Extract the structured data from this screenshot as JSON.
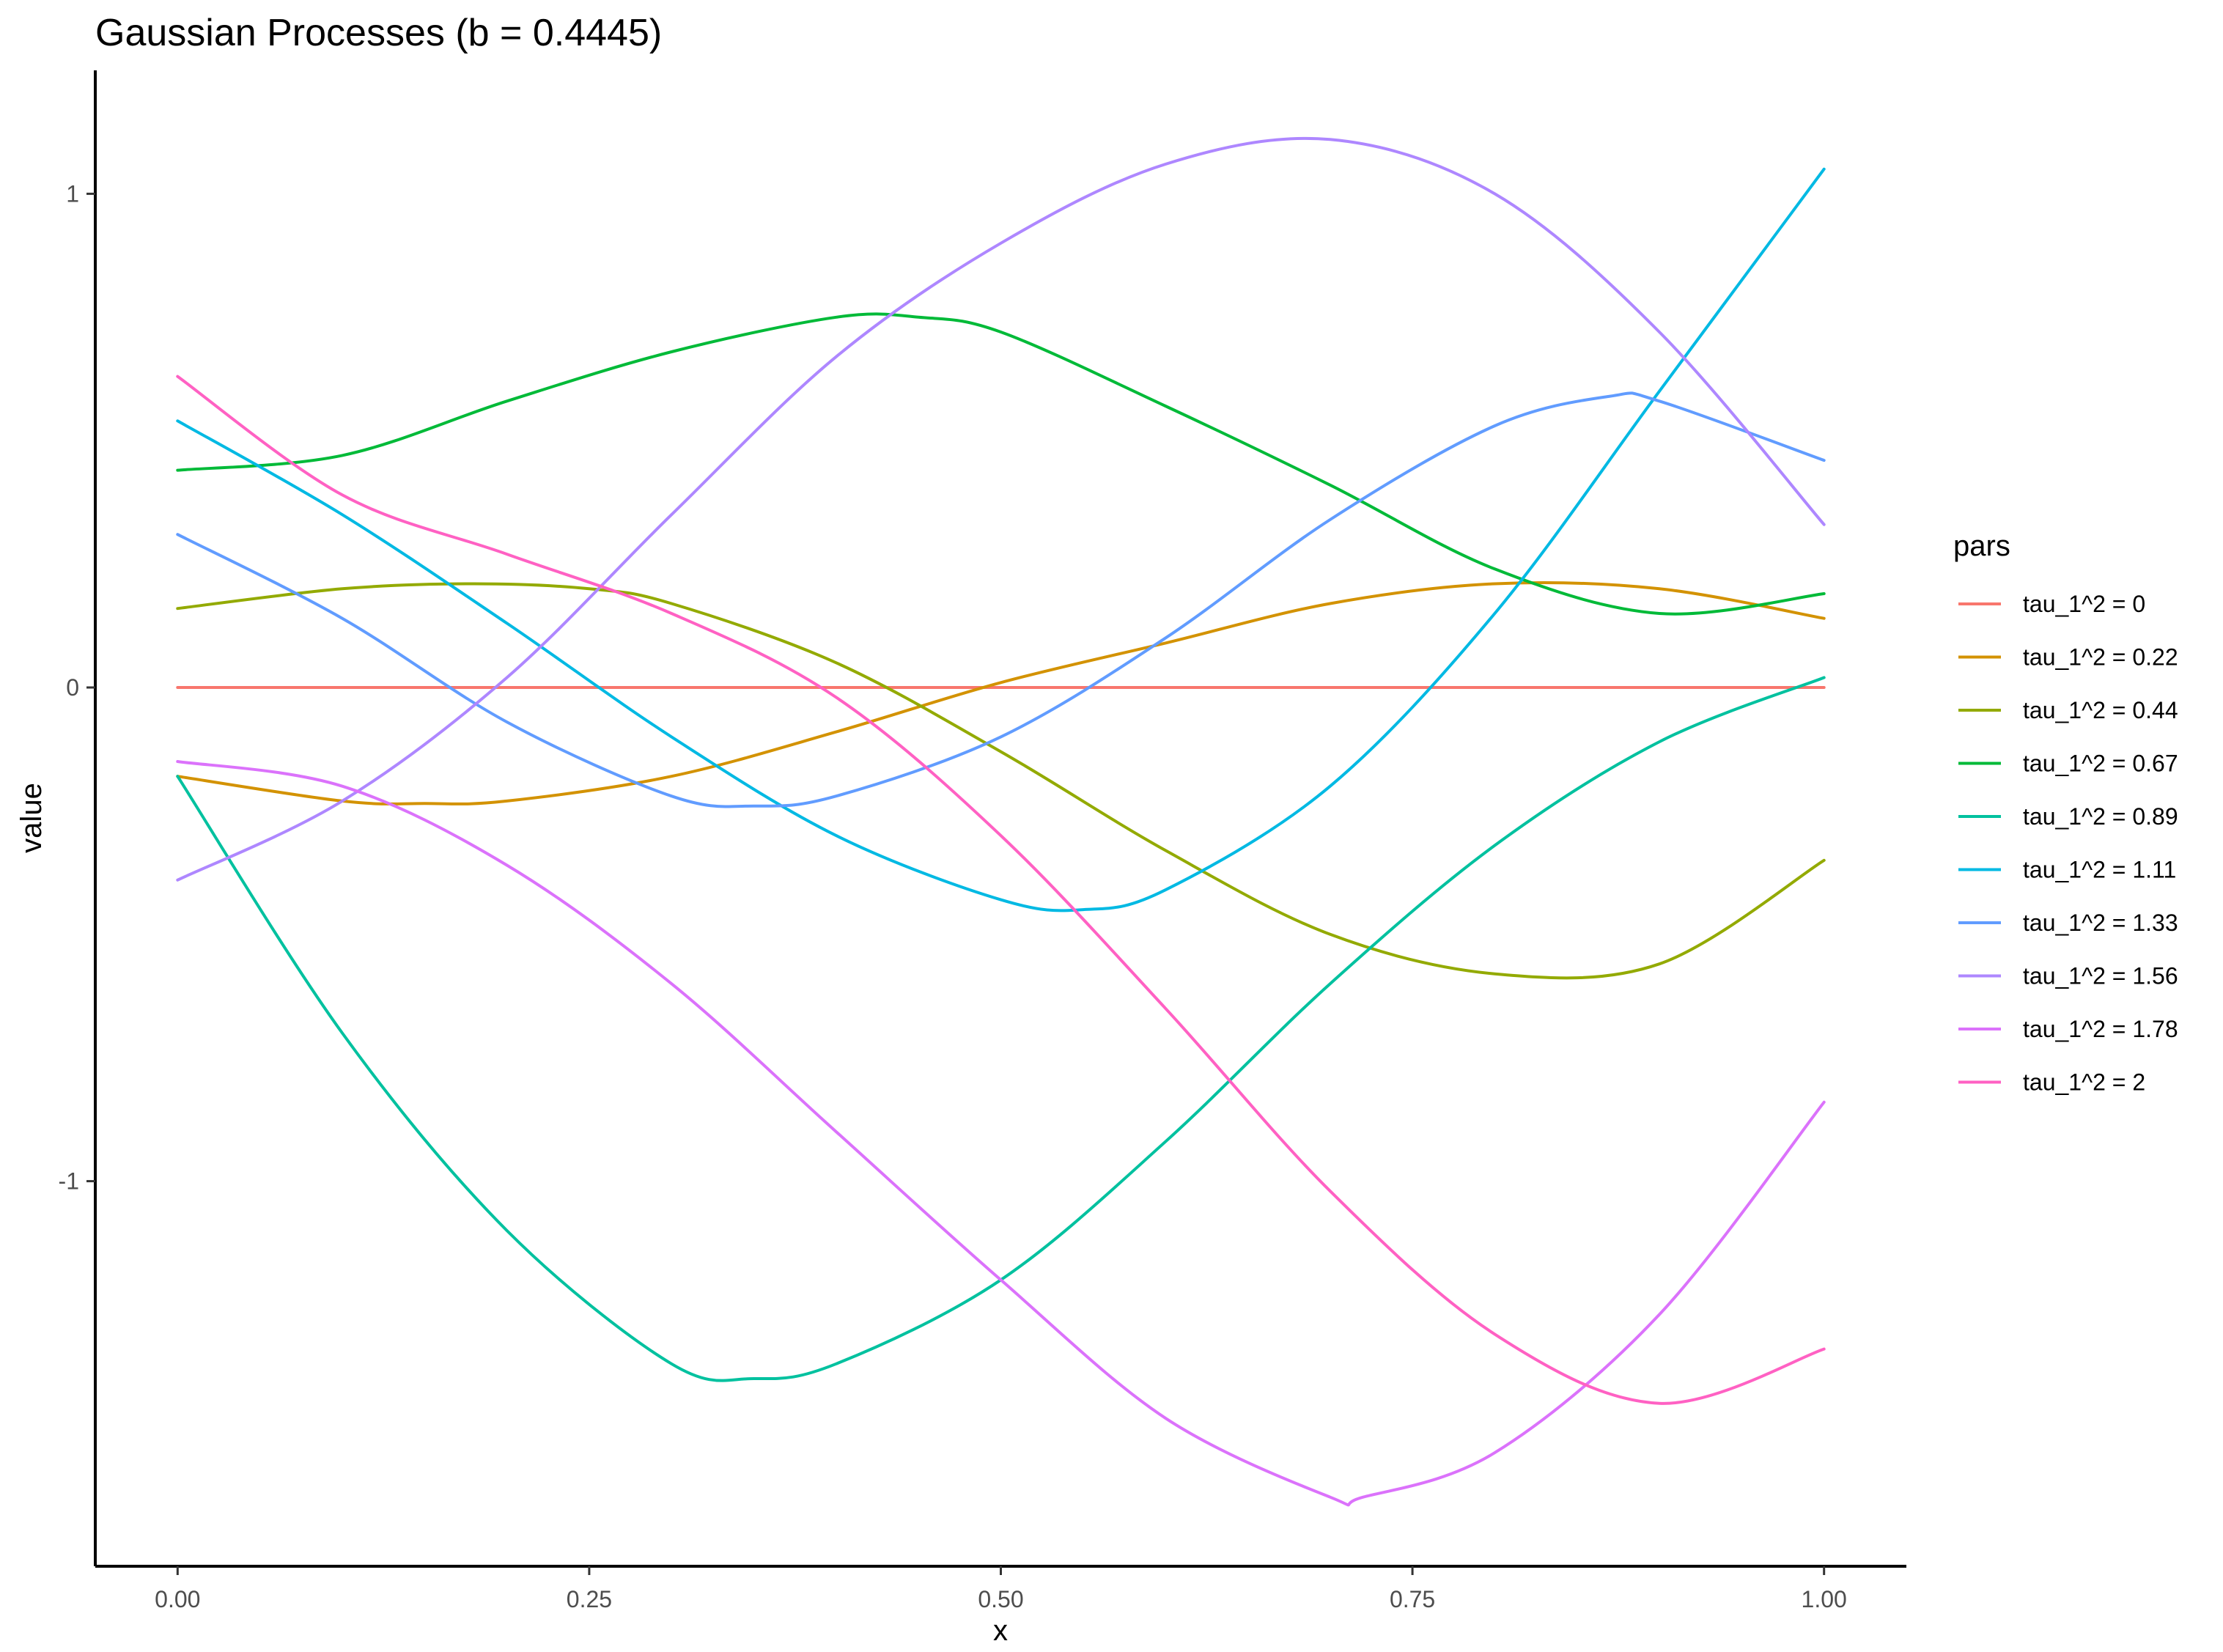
{
  "chart_data": {
    "type": "line",
    "title": "Gaussian Processes (b = 0.4445)",
    "xlabel": "x",
    "ylabel": "value",
    "xlim": [
      -0.05,
      1.05
    ],
    "ylim": [
      -1.78,
      1.25
    ],
    "xticks": [
      0,
      0.25,
      0.5,
      0.75,
      1
    ],
    "xtick_labels": [
      "0.00",
      "0.25",
      "0.50",
      "0.75",
      "1.00"
    ],
    "yticks": [
      1,
      0,
      -1
    ],
    "ytick_labels": [
      "1",
      "0",
      "-1"
    ],
    "grid": false,
    "legend": {
      "title": "pars",
      "position": "right"
    },
    "series": [
      {
        "name": "tau_1^2 = 0",
        "color": "#F8766D",
        "x": [
          0,
          0.1,
          0.2,
          0.3,
          0.4,
          0.5,
          0.6,
          0.7,
          0.8,
          0.9,
          1.0
        ],
        "y": [
          0,
          0,
          0,
          0,
          0,
          0,
          0,
          0,
          0,
          0,
          0
        ]
      },
      {
        "name": "tau_1^2 = 0.22",
        "color": "#D39200",
        "x": [
          0,
          0.1,
          0.15,
          0.2,
          0.3,
          0.4,
          0.5,
          0.6,
          0.7,
          0.8,
          0.9,
          1.0
        ],
        "y": [
          -0.18,
          -0.23,
          -0.235,
          -0.23,
          -0.18,
          -0.09,
          0.01,
          0.09,
          0.17,
          0.21,
          0.2,
          0.14
        ]
      },
      {
        "name": "tau_1^2 = 0.44",
        "color": "#93AA00",
        "x": [
          0,
          0.1,
          0.18,
          0.25,
          0.3,
          0.4,
          0.5,
          0.6,
          0.7,
          0.8,
          0.9,
          1.0
        ],
        "y": [
          0.16,
          0.2,
          0.21,
          0.2,
          0.17,
          0.05,
          -0.13,
          -0.33,
          -0.5,
          -0.58,
          -0.56,
          -0.35
        ]
      },
      {
        "name": "tau_1^2 = 0.67",
        "color": "#00BA38",
        "x": [
          0,
          0.1,
          0.2,
          0.3,
          0.4,
          0.45,
          0.5,
          0.6,
          0.7,
          0.8,
          0.9,
          1.0
        ],
        "y": [
          0.44,
          0.47,
          0.58,
          0.68,
          0.75,
          0.75,
          0.72,
          0.57,
          0.41,
          0.24,
          0.15,
          0.19
        ]
      },
      {
        "name": "tau_1^2 = 0.89",
        "color": "#00C19F",
        "x": [
          0,
          0.1,
          0.2,
          0.3,
          0.35,
          0.4,
          0.5,
          0.6,
          0.7,
          0.8,
          0.9,
          1.0
        ],
        "y": [
          -0.18,
          -0.7,
          -1.1,
          -1.37,
          -1.4,
          -1.37,
          -1.2,
          -0.92,
          -0.6,
          -0.32,
          -0.11,
          0.02
        ]
      },
      {
        "name": "tau_1^2 = 1.11",
        "color": "#00B9E3",
        "x": [
          0,
          0.1,
          0.2,
          0.3,
          0.4,
          0.5,
          0.55,
          0.6,
          0.7,
          0.8,
          0.9,
          1.0
        ],
        "y": [
          0.54,
          0.35,
          0.13,
          -0.1,
          -0.3,
          -0.43,
          -0.45,
          -0.41,
          -0.2,
          0.15,
          0.6,
          1.05
        ]
      },
      {
        "name": "tau_1^2 = 1.33",
        "color": "#619CFF",
        "x": [
          0,
          0.1,
          0.2,
          0.3,
          0.35,
          0.4,
          0.5,
          0.6,
          0.7,
          0.8,
          0.87,
          0.9,
          1.0
        ],
        "y": [
          0.31,
          0.14,
          -0.07,
          -0.22,
          -0.24,
          -0.22,
          -0.1,
          0.1,
          0.34,
          0.53,
          0.59,
          0.58,
          0.46
        ]
      },
      {
        "name": "tau_1^2 = 1.56",
        "color": "#AE87FF",
        "x": [
          0,
          0.1,
          0.2,
          0.3,
          0.4,
          0.5,
          0.6,
          0.7,
          0.8,
          0.9,
          1.0
        ],
        "y": [
          -0.39,
          -0.23,
          0.02,
          0.35,
          0.67,
          0.9,
          1.06,
          1.11,
          1.0,
          0.72,
          0.33
        ]
      },
      {
        "name": "tau_1^2 = 1.78",
        "color": "#DB72FB",
        "x": [
          0,
          0.1,
          0.2,
          0.3,
          0.4,
          0.5,
          0.6,
          0.7,
          0.72,
          0.8,
          0.9,
          1.0
        ],
        "y": [
          -0.15,
          -0.2,
          -0.36,
          -0.6,
          -0.9,
          -1.2,
          -1.48,
          -1.64,
          -1.64,
          -1.55,
          -1.27,
          -0.84
        ]
      },
      {
        "name": "tau_1^2 = 2",
        "color": "#FF61C3",
        "x": [
          0,
          0.1,
          0.2,
          0.3,
          0.4,
          0.5,
          0.6,
          0.7,
          0.8,
          0.9,
          1.0
        ],
        "y": [
          0.63,
          0.39,
          0.27,
          0.15,
          -0.02,
          -0.3,
          -0.65,
          -1.02,
          -1.31,
          -1.45,
          -1.34
        ]
      }
    ]
  }
}
